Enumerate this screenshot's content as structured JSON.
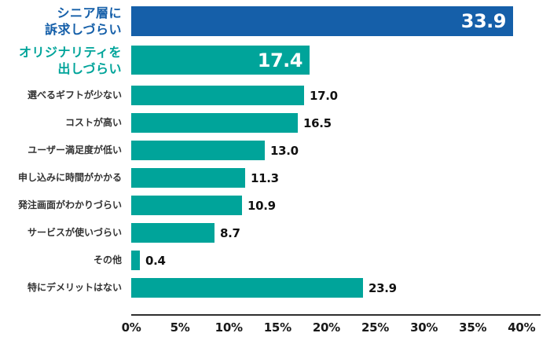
{
  "chart_data": {
    "type": "bar",
    "orientation": "horizontal",
    "title": "",
    "xlabel": "",
    "ylabel": "",
    "x_range": [
      0,
      40
    ],
    "x_ticks": [
      "0%",
      "5%",
      "10%",
      "15%",
      "20%",
      "25%",
      "30%",
      "35%",
      "40%"
    ],
    "grid": false,
    "legend": "none",
    "categories": [
      "シニア層に訴求しづらい",
      "オリジナリティを出しづらい",
      "選べるギフトが少ない",
      "コストが高い",
      "ユーザー満足度が低い",
      "申し込みに時間がかかる",
      "発注画面がわかりづらい",
      "サービスが使いづらい",
      "その他",
      "特にデメリットはない"
    ],
    "values": [
      33.9,
      17.4,
      17.0,
      16.5,
      13.0,
      11.3,
      10.9,
      8.7,
      0.4,
      23.9
    ],
    "bars": [
      {
        "label_lines": [
          "シニア層に",
          "訴求しづらい"
        ],
        "value": 33.9,
        "value_label": "33.9",
        "value_inside": true,
        "emphasized": true,
        "size": "big",
        "color": "#155FA9",
        "label_color": "#155FA9",
        "display_width_pct": 97.8
      },
      {
        "label_lines": [
          "オリジナリティを",
          "出しづらい"
        ],
        "value": 17.4,
        "value_label": "17.4",
        "value_inside": true,
        "emphasized": true,
        "size": "big2",
        "color": "#00A49A",
        "label_color": "#00A49A",
        "display_width_pct": 45.7
      },
      {
        "label_lines": [
          "選べるギフトが少ない"
        ],
        "value": 17.0,
        "value_label": "17.0",
        "value_inside": false,
        "emphasized": false,
        "size": "small",
        "color": "#00A49A",
        "label_color": "#333333",
        "display_width_pct": 44.3
      },
      {
        "label_lines": [
          "コストが高い"
        ],
        "value": 16.5,
        "value_label": "16.5",
        "value_inside": false,
        "emphasized": false,
        "size": "small",
        "color": "#00A49A",
        "label_color": "#333333",
        "display_width_pct": 42.7
      },
      {
        "label_lines": [
          "ユーザー満足度が低い"
        ],
        "value": 13.0,
        "value_label": "13.0",
        "value_inside": false,
        "emphasized": false,
        "size": "small",
        "color": "#00A49A",
        "label_color": "#333333",
        "display_width_pct": 34.2
      },
      {
        "label_lines": [
          "申し込みに時間がかかる"
        ],
        "value": 11.3,
        "value_label": "11.3",
        "value_inside": false,
        "emphasized": false,
        "size": "small",
        "color": "#00A49A",
        "label_color": "#333333",
        "display_width_pct": 29.2
      },
      {
        "label_lines": [
          "発注画面がわかりづらい"
        ],
        "value": 10.9,
        "value_label": "10.9",
        "value_inside": false,
        "emphasized": false,
        "size": "small",
        "color": "#00A49A",
        "label_color": "#333333",
        "display_width_pct": 28.4
      },
      {
        "label_lines": [
          "サービスが使いづらい"
        ],
        "value": 8.7,
        "value_label": "8.7",
        "value_inside": false,
        "emphasized": false,
        "size": "small",
        "color": "#00A49A",
        "label_color": "#333333",
        "display_width_pct": 21.3
      },
      {
        "label_lines": [
          "その他"
        ],
        "value": 0.4,
        "value_label": "0.4",
        "value_inside": false,
        "emphasized": false,
        "size": "small",
        "color": "#00A49A",
        "label_color": "#333333",
        "display_width_pct": 2.2
      },
      {
        "label_lines": [
          "特にデメリットはない"
        ],
        "value": 23.9,
        "value_label": "23.9",
        "value_inside": false,
        "emphasized": false,
        "size": "small",
        "color": "#00A49A",
        "label_color": "#333333",
        "display_width_pct": 59.4
      }
    ]
  },
  "colors": {
    "bar_blue": "#155FA9",
    "bar_teal": "#00A49A",
    "category_text": "#333333",
    "value_text": "#111111",
    "value_text_inside": "#ffffff",
    "axis_line": "#2e2e2e",
    "tick_text": "#191919",
    "background": "#ffffff"
  }
}
